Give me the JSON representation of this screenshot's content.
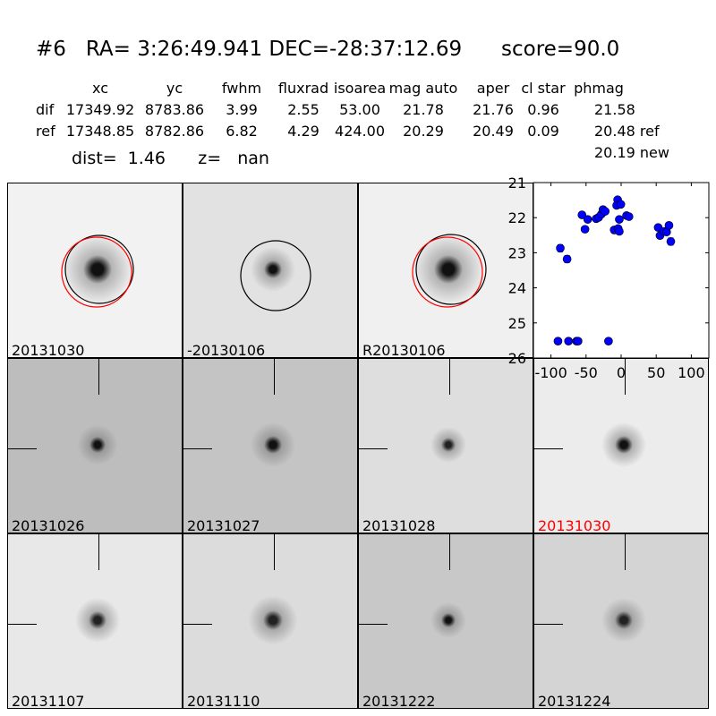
{
  "header": {
    "title": "#6   RA= 3:26:49.941 DEC=-28:37:12.69      score=90.0",
    "columns": [
      "xc",
      "yc",
      "fwhm",
      "fluxrad",
      "isoarea",
      "mag auto",
      "aper",
      "cl star",
      "phmag"
    ],
    "rows": [
      {
        "label": "dif",
        "values": [
          "17349.92",
          "8783.86",
          "3.99",
          "2.55",
          "53.00",
          "21.78",
          "21.76",
          "0.96",
          "21.58"
        ]
      },
      {
        "label": "ref",
        "values": [
          "17348.85",
          "8782.86",
          "6.82",
          "4.29",
          "424.00",
          "20.29",
          "20.49",
          "0.09",
          "20.48 ref"
        ]
      }
    ],
    "extra_phmag": "20.19 new",
    "dist_line": "dist=  1.46      z=   nan"
  },
  "stamps": [
    {
      "label": "20131030",
      "bg": "#f2f2f2",
      "blob": "#111",
      "spread": 16,
      "circles": [
        "black",
        "red"
      ]
    },
    {
      "label": "-20130106",
      "bg": "#e2e2e2",
      "blob": "#111",
      "spread": 10,
      "circles": [
        "black"
      ]
    },
    {
      "label": "R20130106",
      "bg": "#f0f0f0",
      "blob": "#111",
      "spread": 16,
      "circles": [
        "black",
        "red"
      ]
    },
    {
      "label": "20131026",
      "bg": "#bdbdbd",
      "blob": "#111",
      "spread": 9,
      "cross": true
    },
    {
      "label": "20131027",
      "bg": "#c4c4c4",
      "blob": "#111",
      "spread": 10,
      "cross": true
    },
    {
      "label": "20131028",
      "bg": "#dedede",
      "blob": "#222",
      "spread": 8,
      "cross": true
    },
    {
      "label": "20131030",
      "bg": "#ececec",
      "blob": "#111",
      "spread": 10,
      "cross": true,
      "label_color": "#ff0000"
    },
    {
      "label": "20131107",
      "bg": "#e8e8e8",
      "blob": "#222",
      "spread": 10,
      "cross": true
    },
    {
      "label": "20131110",
      "bg": "#dcdcdc",
      "blob": "#222",
      "spread": 11,
      "cross": true
    },
    {
      "label": "20131222",
      "bg": "#c8c8c8",
      "blob": "#111",
      "spread": 8,
      "cross": true
    },
    {
      "label": "20131224",
      "bg": "#d4d4d4",
      "blob": "#222",
      "spread": 10,
      "cross": true
    }
  ],
  "chart_data": {
    "type": "scatter",
    "xlim": [
      -125,
      125
    ],
    "ylim": [
      26,
      21
    ],
    "y_inverted": true,
    "xticks": [
      "-100",
      "-50",
      "0",
      "50",
      "100"
    ],
    "xtick_values": [
      -100,
      -50,
      0,
      50,
      100
    ],
    "yticks": [
      "21",
      "22",
      "23",
      "24",
      "25",
      "26"
    ],
    "ytick_values": [
      21,
      22,
      23,
      24,
      25,
      26
    ],
    "color": "#0000ff",
    "points": [
      {
        "x": -86.7,
        "y": 22.87,
        "err": 0.1
      },
      {
        "x": -77,
        "y": 23.18,
        "err": 0.1
      },
      {
        "x": -55.8,
        "y": 21.92,
        "err": 0.03
      },
      {
        "x": -47.6,
        "y": 22.05,
        "err": 0.03
      },
      {
        "x": -51.5,
        "y": 22.33,
        "err": 0.05
      },
      {
        "x": -35.6,
        "y": 22.03,
        "err": 0.03
      },
      {
        "x": -32,
        "y": 21.99,
        "err": 0.03
      },
      {
        "x": -28,
        "y": 21.9,
        "err": 0.03
      },
      {
        "x": -25.8,
        "y": 21.77,
        "err": 0.03
      },
      {
        "x": -22.7,
        "y": 21.82,
        "err": 0.03
      },
      {
        "x": -5,
        "y": 21.49,
        "err": 0.03
      },
      {
        "x": -6.4,
        "y": 21.65,
        "err": 0.03
      },
      {
        "x": -0.4,
        "y": 21.62,
        "err": 0.03
      },
      {
        "x": -2.6,
        "y": 22.05,
        "err": 0.03
      },
      {
        "x": -9.9,
        "y": 22.35,
        "err": 0.07
      },
      {
        "x": -4.3,
        "y": 22.31,
        "err": 0.05
      },
      {
        "x": -2.6,
        "y": 22.39,
        "err": 0.05
      },
      {
        "x": 7.7,
        "y": 21.94,
        "err": 0.03
      },
      {
        "x": 11.2,
        "y": 21.97,
        "err": 0.03
      },
      {
        "x": 52.8,
        "y": 22.28,
        "err": 0.07
      },
      {
        "x": 55.4,
        "y": 22.51,
        "err": 0.07
      },
      {
        "x": 60.9,
        "y": 22.39,
        "err": 0.05
      },
      {
        "x": 64.8,
        "y": 22.41,
        "err": 0.05
      },
      {
        "x": 68.2,
        "y": 22.22,
        "err": 0.05
      },
      {
        "x": 70.8,
        "y": 22.68,
        "err": 0.1
      },
      {
        "x": -90,
        "y": 25.52,
        "err": 0.03
      },
      {
        "x": -75,
        "y": 25.52,
        "err": 0.03
      },
      {
        "x": -63.5,
        "y": 25.52,
        "err": 0.03
      },
      {
        "x": -61.4,
        "y": 25.52,
        "err": 0.03
      },
      {
        "x": -18,
        "y": 25.52,
        "err": 0.03
      }
    ]
  }
}
